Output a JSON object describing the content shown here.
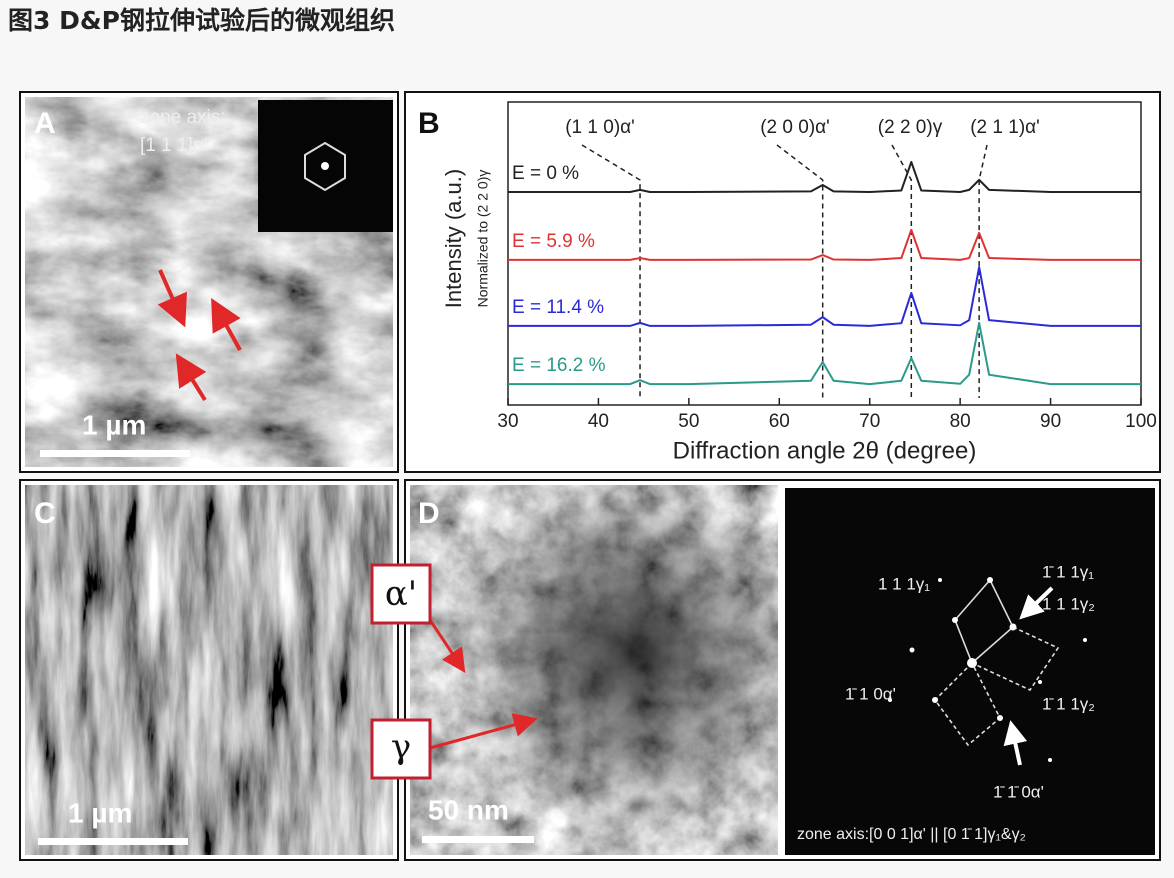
{
  "title": "图3 D&P钢拉伸试验后的微观组织",
  "panels": {
    "a": {
      "label": "A",
      "zone_axis": "zone axis:",
      "zone_index": "[1 1 1]α'",
      "scale_bar": "1 µm"
    },
    "b": {
      "label": "B"
    },
    "c": {
      "label": "C",
      "scale_bar": "1 µm"
    },
    "d": {
      "label": "D",
      "phase_labels": [
        "α'",
        "γ"
      ],
      "scale_bar": "50 nm",
      "spot_labels": [
        "1 1 1γ₁",
        "1̄ 1 1γ₁",
        "1 1 1γ₂",
        "1̄ 1 0α'",
        "1̄ 1 1γ₂",
        "1̄ 1̄ 0α'"
      ],
      "zone_axis": "zone axis:[0 0 1]α' || [0 1̄ 1]γ₁&γ₂"
    }
  },
  "chart_data": {
    "type": "line",
    "x_label": "Diffraction angle 2θ (degree)",
    "y_label": "Intensity (a.u.)",
    "y_sublabel": "Normalized to (2 2 0)γ",
    "xlim": [
      30,
      100
    ],
    "xticks": [
      30,
      40,
      50,
      60,
      70,
      80,
      90,
      100
    ],
    "ylim": [
      0,
      100
    ],
    "x": [
      30,
      43.5,
      44.6,
      45.7,
      50,
      63.5,
      64.8,
      66,
      70,
      73.5,
      74.6,
      75.7,
      80,
      81,
      82.1,
      83.2,
      90,
      100
    ],
    "series": [
      {
        "name": "E = 0 %",
        "color": "#222222",
        "values": [
          70.3,
          70.3,
          71,
          70.3,
          70.3,
          70.5,
          72.6,
          70.5,
          70.3,
          70.8,
          80.2,
          70.8,
          70.3,
          71,
          74.3,
          71,
          70.3,
          70.3
        ]
      },
      {
        "name": "E = 5.9 %",
        "color": "#e03232",
        "values": [
          47.9,
          47.9,
          48.5,
          47.9,
          47.9,
          48,
          49.5,
          48,
          47.9,
          48.5,
          57.8,
          48.5,
          47.9,
          48.5,
          56.8,
          48.5,
          47.9,
          47.9
        ]
      },
      {
        "name": "E = 11.4 %",
        "color": "#2a2ad8",
        "values": [
          26.1,
          26.1,
          27.1,
          26.1,
          26.1,
          26.5,
          29,
          26.5,
          26.1,
          27,
          37,
          27,
          26.3,
          28,
          45.5,
          28,
          26.1,
          26.1
        ]
      },
      {
        "name": "E = 16.2 %",
        "color": "#2a9a8a",
        "values": [
          6.9,
          6.9,
          8.2,
          6.9,
          6.9,
          8,
          14.2,
          8,
          6.9,
          8,
          15.5,
          8,
          7,
          10,
          27.1,
          10,
          6.9,
          6.9
        ]
      }
    ],
    "peaks": [
      {
        "label": "(1 1 0)α'",
        "x": 44.6
      },
      {
        "label": "(2 0 0)α'",
        "x": 64.8
      },
      {
        "label": "(2 2 0)γ",
        "x": 74.6
      },
      {
        "label": "(2 1 1)α'",
        "x": 82.1
      }
    ]
  }
}
